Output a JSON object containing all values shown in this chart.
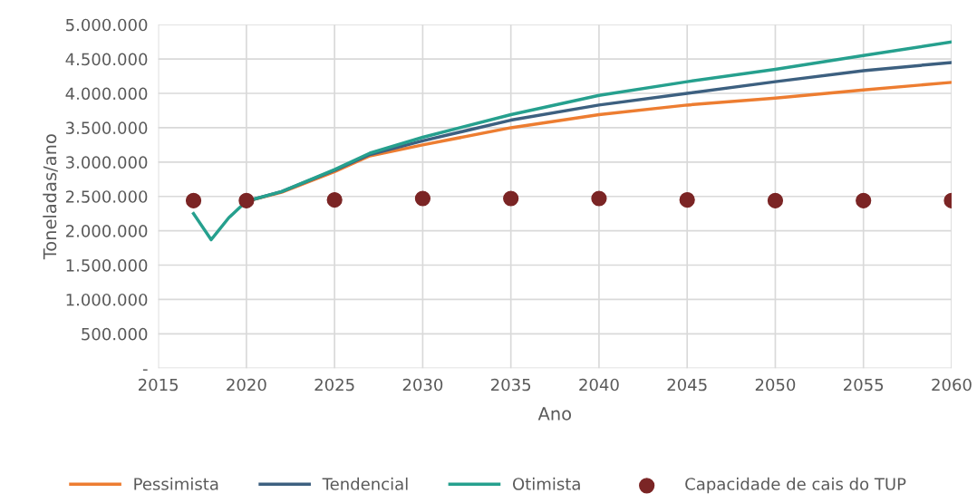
{
  "chart_data": {
    "type": "line",
    "xlabel": "Ano",
    "ylabel": "Toneladas/ano",
    "xlim": [
      2015,
      2060
    ],
    "xticks": [
      2015,
      2020,
      2025,
      2030,
      2035,
      2040,
      2045,
      2050,
      2055,
      2060
    ],
    "ylim": [
      0,
      5000000
    ],
    "yticks": [
      {
        "value": 0,
        "label": "-"
      },
      {
        "value": 500000,
        "label": "500.000"
      },
      {
        "value": 1000000,
        "label": "1.000.000"
      },
      {
        "value": 1500000,
        "label": "1.500.000"
      },
      {
        "value": 2000000,
        "label": "2.000.000"
      },
      {
        "value": 2500000,
        "label": "2.500.000"
      },
      {
        "value": 3000000,
        "label": "3.000.000"
      },
      {
        "value": 3500000,
        "label": "3.500.000"
      },
      {
        "value": 4000000,
        "label": "4.000.000"
      },
      {
        "value": 4500000,
        "label": "4.500.000"
      },
      {
        "value": 5000000,
        "label": "5.000.000"
      }
    ],
    "grid": true,
    "legend": "bottom",
    "series": [
      {
        "name": "Pessimista",
        "color": "#ed7d31",
        "x": [
          2020,
          2022,
          2025,
          2027,
          2030,
          2035,
          2040,
          2045,
          2050,
          2055,
          2060
        ],
        "values": [
          2430000,
          2560000,
          2860000,
          3090000,
          3250000,
          3500000,
          3690000,
          3830000,
          3930000,
          4050000,
          4160000
        ]
      },
      {
        "name": "Tendencial",
        "color": "#3d6080",
        "x": [
          2020,
          2022,
          2025,
          2027,
          2030,
          2035,
          2040,
          2045,
          2050,
          2055,
          2060
        ],
        "values": [
          2430000,
          2570000,
          2880000,
          3110000,
          3310000,
          3610000,
          3830000,
          4000000,
          4170000,
          4330000,
          4450000
        ]
      },
      {
        "name": "Otimista",
        "color": "#26a08e",
        "x": [
          2017,
          2018,
          2019,
          2020,
          2022,
          2025,
          2027,
          2030,
          2035,
          2040,
          2045,
          2050,
          2055,
          2060
        ],
        "values": [
          2250000,
          1870000,
          2190000,
          2430000,
          2570000,
          2890000,
          3130000,
          3360000,
          3690000,
          3970000,
          4170000,
          4350000,
          4550000,
          4750000
        ]
      },
      {
        "name": "Capacidade de cais do TUP",
        "type": "scatter",
        "marker": "circle",
        "color": "#7b2525",
        "x": [
          2017,
          2020,
          2025,
          2030,
          2035,
          2040,
          2045,
          2050,
          2055,
          2060
        ],
        "values": [
          2440000,
          2440000,
          2450000,
          2470000,
          2470000,
          2470000,
          2450000,
          2440000,
          2440000,
          2440000
        ]
      }
    ]
  }
}
